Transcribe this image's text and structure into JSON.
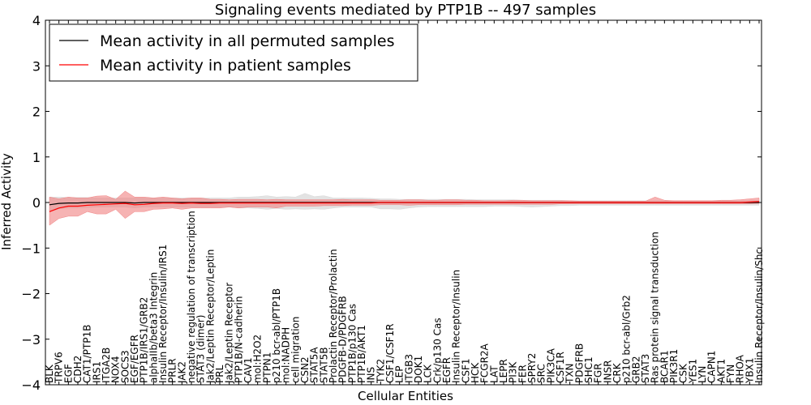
{
  "chart_data": {
    "type": "line",
    "title": "Signaling events mediated by PTP1B -- 497 samples",
    "xlabel": "Cellular Entities",
    "ylabel": "Inferred Activity",
    "ylim": [
      -4,
      4
    ],
    "yticks": [
      -4,
      -3,
      -2,
      -1,
      0,
      1,
      2,
      3,
      4
    ],
    "ytick_labels": [
      "−4",
      "−3",
      "−2",
      "−1",
      "0",
      "1",
      "2",
      "3",
      "4"
    ],
    "grid": false,
    "legend_position": "top-left",
    "categories": [
      "BLK",
      "TRPV6",
      "EGF",
      "CDH2",
      "CAT1/PTP1B",
      "IRS1",
      "ITGA2B",
      "NOX4",
      "SOCS3",
      "EGF/EGFR",
      "PTP1B/IRS1/GRB2",
      "alphaIIb/beta3 Integrin",
      "Insulin Receptor/Insulin/IRS1",
      "PRLR",
      "JAK2",
      "negative regulation of transcription",
      "STAT3 (dimer)",
      "Jak2/Leptin Receptor/Leptin",
      "PRL",
      "Jak2/Leptin Receptor",
      "PTP1B/N-cadherin",
      "CAV1",
      "mol:H2O2",
      "PTPN1",
      "p210 bcr-abl/PTP1B",
      "mol:NADPH",
      "cell migration",
      "CSN2",
      "STAT5A",
      "STAT5B",
      "Prolactin Receptor/Prolactin",
      "PDGFB-D/PDGFRB",
      "PTP1B/p130 Cas",
      "PTP1B/AKT1",
      "INS",
      "TYK2",
      "CSF1/CSF1R",
      "LEP",
      "ITGB3",
      "DOK1",
      "LCK",
      "Crk/p130 Cas",
      "EGFR",
      "Insulin Receptor/Insulin",
      "CSF1",
      "HCK",
      "FCGR2A",
      "LAT",
      "LEPR",
      "PI3K",
      "FER",
      "SPRY2",
      "SRC",
      "PIK3CA",
      "CSF1R",
      "TXN",
      "PDGFRB",
      "SHC1",
      "FGR",
      "INSR",
      "CRK",
      "p210 bcr-abl/Grb2",
      "GRB2",
      "STAT3",
      "Ras protein signal transduction",
      "BCAR1",
      "PIK3R1",
      "CSK",
      "YES1",
      "LYN",
      "CAPN1",
      "AKT1",
      "FYN",
      "RHOA",
      "YBX1",
      "Insulin Receptor/Insulin/Shc"
    ],
    "series": [
      {
        "name": "Mean activity in all permuted samples",
        "color": "#000000",
        "band_color": "#d9d9d9",
        "values": [
          -0.05,
          -0.02,
          -0.01,
          -0.01,
          0,
          0,
          0,
          0,
          0,
          -0.01,
          0,
          0,
          0,
          0,
          0,
          0,
          0,
          0,
          0,
          0,
          0,
          0,
          0,
          0,
          0,
          0,
          0,
          0,
          0,
          0,
          0,
          0,
          0,
          0,
          0,
          0,
          0,
          0,
          0,
          0,
          0,
          0,
          0,
          0,
          0,
          0,
          0,
          0,
          0,
          0,
          0,
          0,
          0,
          0,
          0,
          0,
          0,
          0,
          0,
          0,
          0,
          0,
          0,
          0,
          0,
          0,
          0,
          0,
          0,
          0,
          0,
          0,
          0,
          0,
          0,
          0
        ],
        "band_upper": [
          0.12,
          0.12,
          0.11,
          0.11,
          0.11,
          0.1,
          0.1,
          0.1,
          0.1,
          0.1,
          0.1,
          0.1,
          0.1,
          0.1,
          0.1,
          0.1,
          0.1,
          0.1,
          0.1,
          0.1,
          0.12,
          0.12,
          0.13,
          0.15,
          0.12,
          0.13,
          0.12,
          0.2,
          0.13,
          0.15,
          0.1,
          0.1,
          0.1,
          0.1,
          0.09,
          0.08,
          0.08,
          0.07,
          0.07,
          0.07,
          0.07,
          0.07,
          0.07,
          0.07,
          0.07,
          0.06,
          0.06,
          0.06,
          0.06,
          0.06,
          0.05,
          0.05,
          0.05,
          0.05,
          0.05,
          0.04,
          0.04,
          0.04,
          0.04,
          0.04,
          0.04,
          0.04,
          0.04,
          0.04,
          0.04,
          0.04,
          0.04,
          0.04,
          0.04,
          0.04,
          0.04,
          0.04,
          0.04,
          0.04,
          0.04,
          0.04
        ],
        "band_lower": [
          -0.2,
          -0.14,
          -0.12,
          -0.12,
          -0.11,
          -0.1,
          -0.1,
          -0.1,
          -0.1,
          -0.12,
          -0.1,
          -0.1,
          -0.1,
          -0.1,
          -0.1,
          -0.1,
          -0.1,
          -0.1,
          -0.1,
          -0.1,
          -0.12,
          -0.12,
          -0.13,
          -0.15,
          -0.13,
          -0.15,
          -0.14,
          -0.15,
          -0.14,
          -0.15,
          -0.12,
          -0.1,
          -0.1,
          -0.1,
          -0.1,
          -0.14,
          -0.14,
          -0.15,
          -0.12,
          -0.1,
          -0.09,
          -0.09,
          -0.09,
          -0.09,
          -0.09,
          -0.09,
          -0.09,
          -0.08,
          -0.08,
          -0.08,
          -0.09,
          -0.1,
          -0.09,
          -0.08,
          -0.07,
          -0.07,
          -0.06,
          -0.06,
          -0.06,
          -0.06,
          -0.06,
          -0.06,
          -0.06,
          -0.06,
          -0.06,
          -0.06,
          -0.06,
          -0.06,
          -0.06,
          -0.06,
          -0.06,
          -0.06,
          -0.06,
          -0.06,
          -0.06,
          -0.06
        ]
      },
      {
        "name": "Mean activity in patient samples",
        "color": "#ff0000",
        "band_color": "#f08080",
        "values": [
          -0.2,
          -0.12,
          -0.08,
          -0.08,
          -0.06,
          -0.05,
          -0.04,
          -0.03,
          -0.02,
          -0.05,
          -0.04,
          -0.02,
          -0.01,
          -0.01,
          -0.02,
          -0.01,
          -0.02,
          -0.02,
          -0.01,
          -0.01,
          -0.01,
          -0.01,
          -0.01,
          -0.01,
          -0.01,
          -0.01,
          -0.01,
          -0.01,
          -0.01,
          -0.01,
          -0.01,
          -0.01,
          -0.01,
          -0.01,
          -0.01,
          0,
          0,
          0,
          0,
          0,
          0,
          0,
          0,
          0,
          0,
          0,
          0,
          0,
          0,
          0,
          0,
          0,
          0,
          0,
          0,
          0,
          0,
          0,
          0,
          0,
          0,
          0,
          0,
          0,
          0,
          0,
          0,
          0,
          0,
          0,
          0,
          0,
          0,
          0,
          0.01,
          0.02
        ],
        "band_upper": [
          0.12,
          0.08,
          0.12,
          0.1,
          0.1,
          0.14,
          0.15,
          0.07,
          0.25,
          0.12,
          0.12,
          0.1,
          0.12,
          0.1,
          0.08,
          0.1,
          0.1,
          0.07,
          0.07,
          0.06,
          0.07,
          0.07,
          0.07,
          0.06,
          0.07,
          0.06,
          0.06,
          0.06,
          0.06,
          0.06,
          0.06,
          0.07,
          0.06,
          0.06,
          0.06,
          0.05,
          0.05,
          0.05,
          0.06,
          0.06,
          0.05,
          0.05,
          0.06,
          0.06,
          0.05,
          0.05,
          0.04,
          0.04,
          0.04,
          0.05,
          0.05,
          0.04,
          0.04,
          0.04,
          0.04,
          0.04,
          0.03,
          0.03,
          0.03,
          0.03,
          0.03,
          0.03,
          0.03,
          0.03,
          0.12,
          0.05,
          0.04,
          0.04,
          0.04,
          0.04,
          0.04,
          0.05,
          0.05,
          0.06,
          0.08,
          0.1
        ],
        "band_lower": [
          -0.5,
          -0.35,
          -0.3,
          -0.3,
          -0.2,
          -0.25,
          -0.25,
          -0.15,
          -0.35,
          -0.2,
          -0.2,
          -0.15,
          -0.14,
          -0.12,
          -0.15,
          -0.12,
          -0.12,
          -0.12,
          -0.12,
          -0.1,
          -0.12,
          -0.1,
          -0.1,
          -0.1,
          -0.12,
          -0.08,
          -0.08,
          -0.08,
          -0.08,
          -0.07,
          -0.07,
          -0.07,
          -0.06,
          -0.06,
          -0.06,
          -0.05,
          -0.05,
          -0.05,
          -0.06,
          -0.05,
          -0.05,
          -0.05,
          -0.05,
          -0.05,
          -0.04,
          -0.04,
          -0.04,
          -0.04,
          -0.04,
          -0.04,
          -0.04,
          -0.04,
          -0.04,
          -0.04,
          -0.03,
          -0.03,
          -0.03,
          -0.03,
          -0.03,
          -0.03,
          -0.03,
          -0.03,
          -0.03,
          -0.03,
          -0.03,
          -0.03,
          -0.03,
          -0.03,
          -0.03,
          -0.03,
          -0.03,
          -0.03,
          -0.03,
          -0.03,
          -0.03,
          -0.02
        ]
      }
    ]
  }
}
